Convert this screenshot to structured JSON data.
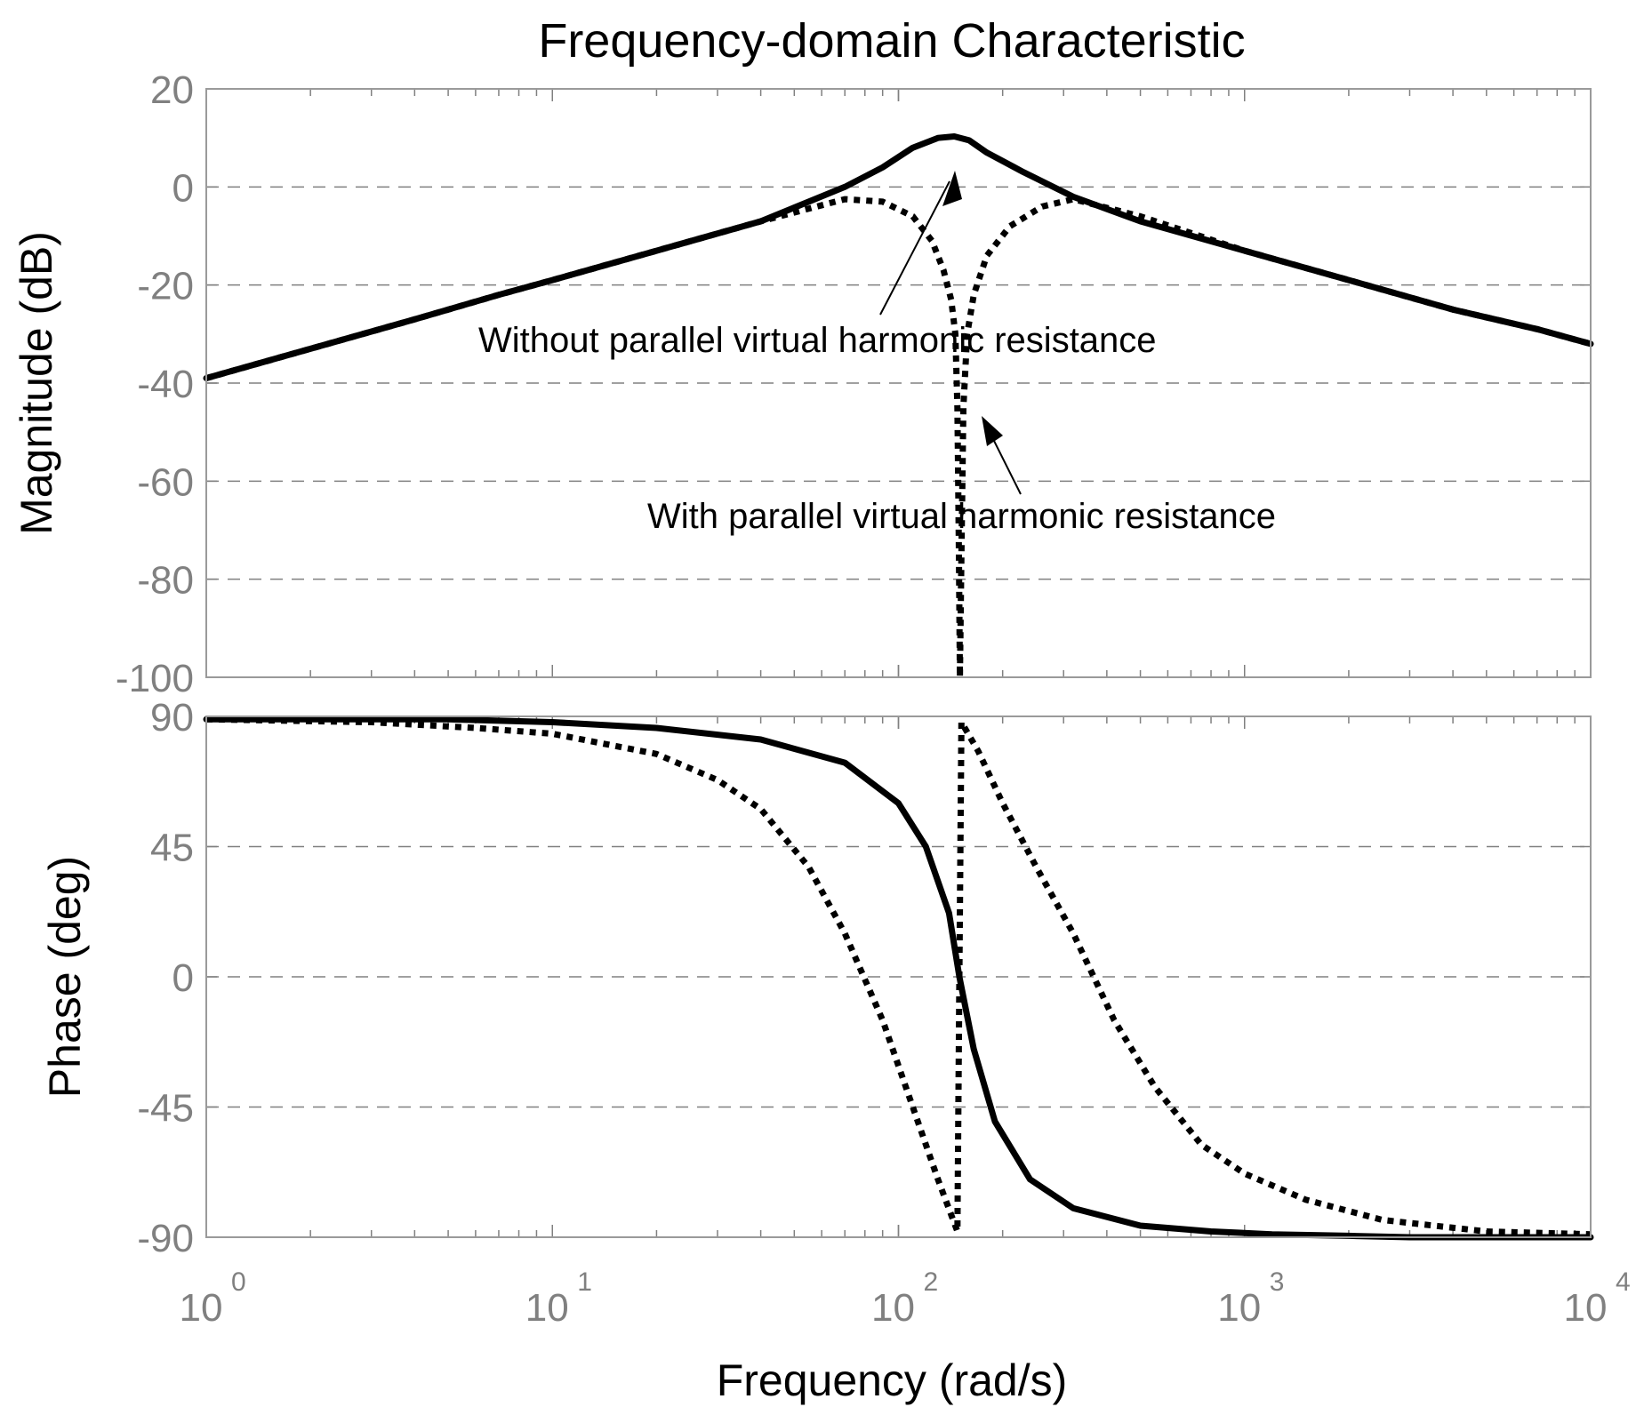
{
  "chart_data": {
    "type": "line",
    "title": "Frequency-domain Characteristic",
    "xlabel": "Frequency  (rad/s)",
    "xscale": "log",
    "xlim": [
      1,
      10000
    ],
    "x_ticks": [
      {
        "value": 1,
        "base": "10",
        "exp": "0"
      },
      {
        "value": 10,
        "base": "10",
        "exp": "1"
      },
      {
        "value": 100,
        "base": "10",
        "exp": "2"
      },
      {
        "value": 1000,
        "base": "10",
        "exp": "3"
      },
      {
        "value": 10000,
        "base": "10",
        "exp": "4"
      }
    ],
    "grid": true,
    "colors": {
      "line": "#000000",
      "tick_label": "#808080",
      "grid": "#808080",
      "frame": "#9a9a9a"
    },
    "panels": [
      {
        "id": "magnitude",
        "ylabel": "Magnitude (dB)",
        "ylim": [
          -100,
          20
        ],
        "y_ticks": [
          {
            "value": 20,
            "label": "20"
          },
          {
            "value": 0,
            "label": "0"
          },
          {
            "value": -20,
            "label": "-20"
          },
          {
            "value": -40,
            "label": "-40"
          },
          {
            "value": -60,
            "label": "-60"
          },
          {
            "value": -80,
            "label": "-80"
          },
          {
            "value": -100,
            "label": "-100"
          }
        ],
        "series": [
          {
            "name": "Without parallel virtual harmonic resistance",
            "style": "solid",
            "x": [
              1,
              2,
              4,
              7,
              10,
              20,
              40,
              70,
              90,
              110,
              130,
              145,
              160,
              180,
              230,
              320,
              500,
              1000,
              2000,
              4000,
              7000,
              10000
            ],
            "y": [
              -39,
              -33,
              -27,
              -22,
              -19,
              -13,
              -7,
              0,
              4,
              8,
              10,
              10.3,
              9.5,
              7,
              3,
              -2,
              -7,
              -13,
              -19,
              -25,
              -29,
              -32
            ]
          },
          {
            "name": "With parallel virtual harmonic resistance",
            "style": "dotted",
            "x": [
              1,
              2,
              4,
              7,
              10,
              20,
              40,
              70,
              90,
              110,
              125,
              135,
              142,
              146,
              148,
              149.5,
              150.5,
              152,
              154,
              158,
              165,
              180,
              210,
              260,
              320,
              500,
              1000,
              2000,
              4000,
              7000,
              10000
            ],
            "y": [
              -39,
              -33,
              -27,
              -22,
              -19,
              -13,
              -7,
              -2.5,
              -3,
              -6,
              -11,
              -17,
              -23,
              -30,
              -45,
              -75,
              -100,
              -75,
              -45,
              -30,
              -22,
              -14,
              -8,
              -4,
              -2.5,
              -6,
              -13,
              -19,
              -25,
              -29,
              -32
            ]
          }
        ]
      },
      {
        "id": "phase",
        "ylabel": "Phase (deg)",
        "ylim": [
          -90,
          90
        ],
        "y_ticks": [
          {
            "value": 90,
            "label": "90"
          },
          {
            "value": 45,
            "label": "45"
          },
          {
            "value": 0,
            "label": "0"
          },
          {
            "value": -45,
            "label": "-45"
          },
          {
            "value": -90,
            "label": "-90"
          }
        ],
        "series": [
          {
            "name": "Without parallel virtual harmonic resistance",
            "style": "solid",
            "x": [
              1,
              5,
              10,
              20,
              40,
              70,
              100,
              120,
              140,
              150,
              165,
              190,
              240,
              320,
              500,
              800,
              1200,
              2000,
              3000,
              5000,
              10000
            ],
            "y": [
              89,
              89,
              88,
              86,
              82,
              74,
              60,
              45,
              22,
              0,
              -25,
              -50,
              -70,
              -80,
              -86,
              -88,
              -89,
              -89.5,
              -90,
              -90,
              -90
            ]
          },
          {
            "name": "With parallel virtual harmonic resistance",
            "style": "dotted",
            "x": [
              1,
              3,
              6,
              10,
              20,
              30,
              40,
              55,
              70,
              90,
              110,
              130,
              148,
              150,
              152,
              170,
              200,
              250,
              320,
              420,
              550,
              750,
              1000,
              1500,
              2500,
              5000,
              10000
            ],
            "y": [
              89,
              88,
              86,
              84,
              77,
              68,
              58,
              38,
              15,
              -15,
              -45,
              -70,
              -88,
              0,
              88,
              78,
              60,
              38,
              15,
              -15,
              -38,
              -58,
              -68,
              -77,
              -84,
              -88,
              -89
            ]
          }
        ]
      }
    ],
    "annotations": [
      {
        "text": "Without parallel virtual harmonic resistance",
        "target": "peak of solid magnitude curve"
      },
      {
        "text": "With parallel virtual harmonic resistance",
        "target": "notch of dotted magnitude curve"
      }
    ]
  }
}
